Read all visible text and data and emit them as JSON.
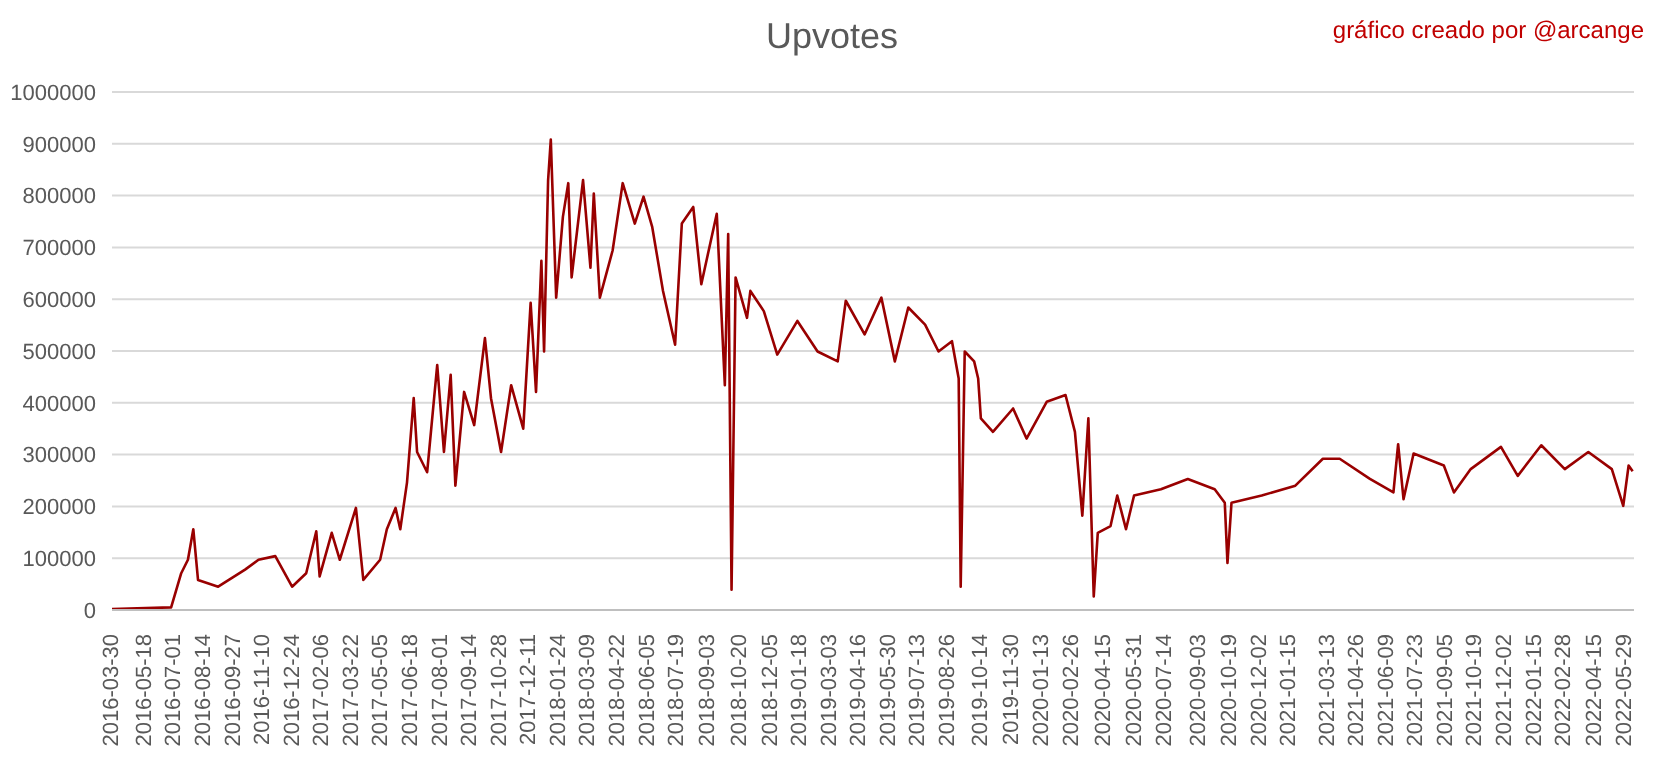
{
  "chart_data": {
    "type": "line",
    "title": "Upvotes",
    "annotations": [
      "gráfico creado por @arcange"
    ],
    "x": [
      "2016-03-30",
      "2016-06-26",
      "2016-07-11",
      "2016-07-21",
      "2016-07-29",
      "2016-08-05",
      "2016-09-04",
      "2016-10-14",
      "2016-11-03",
      "2016-11-28",
      "2016-12-23",
      "2017-01-13",
      "2017-01-28",
      "2017-02-02",
      "2017-02-20",
      "2017-03-04",
      "2017-03-28",
      "2017-04-08",
      "2017-05-03",
      "2017-05-13",
      "2017-05-26",
      "2017-06-02",
      "2017-06-12",
      "2017-06-22",
      "2017-06-27",
      "2017-07-12",
      "2017-07-27",
      "2017-08-06",
      "2017-08-16",
      "2017-08-23",
      "2017-09-05",
      "2017-09-20",
      "2017-10-06",
      "2017-10-15",
      "2017-10-30",
      "2017-11-14",
      "2017-12-02",
      "2017-12-13",
      "2017-12-21",
      "2017-12-29",
      "2018-01-02",
      "2018-01-08",
      "2018-01-12",
      "2018-01-20",
      "2018-01-30",
      "2018-02-07",
      "2018-02-12",
      "2018-03-01",
      "2018-03-12",
      "2018-03-17",
      "2018-03-26",
      "2018-04-14",
      "2018-04-29",
      "2018-05-17",
      "2018-05-30",
      "2018-06-12",
      "2018-06-28",
      "2018-07-16",
      "2018-07-26",
      "2018-08-12",
      "2018-08-24",
      "2018-09-16",
      "2018-09-28",
      "2018-10-03",
      "2018-10-08",
      "2018-10-14",
      "2018-10-31",
      "2018-11-05",
      "2018-11-25",
      "2018-12-15",
      "2019-01-14",
      "2019-02-13",
      "2019-03-15",
      "2019-03-27",
      "2019-04-24",
      "2019-05-19",
      "2019-06-08",
      "2019-06-28",
      "2019-07-23",
      "2019-08-12",
      "2019-09-01",
      "2019-09-11",
      "2019-09-14",
      "2019-09-20",
      "2019-10-04",
      "2019-10-10",
      "2019-10-14",
      "2019-11-01",
      "2019-12-01",
      "2019-12-21",
      "2020-01-20",
      "2020-02-17",
      "2020-03-02",
      "2020-03-13",
      "2020-03-22",
      "2020-03-30",
      "2020-04-05",
      "2020-04-24",
      "2020-05-04",
      "2020-05-17",
      "2020-05-29",
      "2020-07-08",
      "2020-08-17",
      "2020-09-26",
      "2020-10-11",
      "2020-10-15",
      "2020-10-21",
      "2020-12-05",
      "2021-01-24",
      "2021-03-06",
      "2021-03-31",
      "2021-05-15",
      "2021-06-19",
      "2021-06-26",
      "2021-07-04",
      "2021-07-19",
      "2021-09-02",
      "2021-09-17",
      "2021-10-12",
      "2021-11-26",
      "2021-12-21",
      "2022-01-25",
      "2022-03-01",
      "2022-04-05",
      "2022-05-10",
      "2022-05-27",
      "2022-06-04",
      "2022-06-10"
    ],
    "series": [
      {
        "color": "#990000",
        "values": [
          2000,
          5000,
          71000,
          97000,
          156000,
          58000,
          45000,
          78000,
          97000,
          104000,
          45000,
          71000,
          152000,
          65000,
          149000,
          97000,
          197000,
          58000,
          97000,
          156000,
          197000,
          156000,
          246000,
          409000,
          305000,
          266000,
          473000,
          305000,
          454000,
          240000,
          421000,
          357000,
          525000,
          409000,
          305000,
          434000,
          350000,
          593000,
          421000,
          674000,
          499000,
          830000,
          908000,
          603000,
          759000,
          824000,
          642000,
          830000,
          661000,
          804000,
          603000,
          694000,
          824000,
          746000,
          798000,
          739000,
          616000,
          512000,
          746000,
          778000,
          629000,
          765000,
          434000,
          726000,
          39000,
          642000,
          564000,
          616000,
          577000,
          493000,
          558000,
          499000,
          480000,
          597000,
          532000,
          603000,
          480000,
          584000,
          551000,
          499000,
          519000,
          447000,
          45000,
          499000,
          480000,
          447000,
          370000,
          344000,
          389000,
          331000,
          402000,
          415000,
          344000,
          182000,
          370000,
          26000,
          149000,
          162000,
          221000,
          156000,
          221000,
          233000,
          253000,
          233000,
          207000,
          91000,
          207000,
          221000,
          240000,
          292000,
          292000,
          253000,
          227000,
          320000,
          214000,
          302000,
          279000,
          227000,
          272000,
          315000,
          259000,
          318000,
          272000,
          305000,
          272000,
          201000,
          279000,
          268000
        ]
      }
    ],
    "xlim": [
      "2016-03-30",
      "2022-06-12"
    ],
    "xticks": [
      "2016-03-30",
      "2016-05-18",
      "2016-07-01",
      "2016-08-14",
      "2016-09-27",
      "2016-11-10",
      "2016-12-24",
      "2017-02-06",
      "2017-03-22",
      "2017-05-05",
      "2017-06-18",
      "2017-08-01",
      "2017-09-14",
      "2017-10-28",
      "2017-12-11",
      "2018-01-24",
      "2018-03-09",
      "2018-04-22",
      "2018-06-05",
      "2018-07-19",
      "2018-09-03",
      "2018-10-20",
      "2018-12-05",
      "2019-01-18",
      "2019-03-03",
      "2019-04-16",
      "2019-05-30",
      "2019-07-13",
      "2019-08-26",
      "2019-10-14",
      "2019-11-30",
      "2020-01-13",
      "2020-02-26",
      "2020-04-15",
      "2020-05-31",
      "2020-07-14",
      "2020-09-03",
      "2020-10-19",
      "2020-12-02",
      "2021-01-15",
      "2021-03-13",
      "2021-04-26",
      "2021-06-09",
      "2021-07-23",
      "2021-09-05",
      "2021-10-19",
      "2021-12-02",
      "2022-01-15",
      "2022-02-28",
      "2022-04-15",
      "2022-05-29"
    ],
    "ylim": [
      0,
      1000000
    ],
    "yticks": [
      0,
      100000,
      200000,
      300000,
      400000,
      500000,
      600000,
      700000,
      800000,
      900000,
      1000000
    ],
    "grid": "y"
  }
}
